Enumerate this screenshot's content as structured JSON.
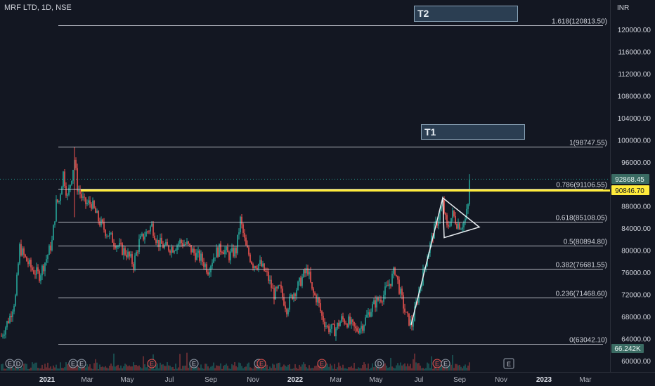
{
  "header": {
    "symbol_title": "MRF LTD, 1D, NSE"
  },
  "axis": {
    "currency": "INR",
    "price_ticks": [
      "120000.00",
      "116000.00",
      "112000.00",
      "108000.00",
      "104000.00",
      "100000.00",
      "96000.00",
      "88000.00",
      "84000.00",
      "80000.00",
      "76000.00",
      "72000.00",
      "68000.00",
      "64000.00",
      "60000.00"
    ],
    "time_ticks": [
      "2021",
      "Mar",
      "May",
      "Jul",
      "Sep",
      "Nov",
      "2022",
      "Mar",
      "May",
      "Jul",
      "Sep",
      "Nov",
      "2023",
      "Mar"
    ],
    "price_range": [
      59000,
      123500
    ]
  },
  "price_labels": {
    "last_price": "92868.45",
    "marker_price": "90846.70",
    "volume": "66.242K"
  },
  "fib_levels": [
    {
      "label": "1.618(120813.50)",
      "price": 120813.5
    },
    {
      "label": "1(98747.55)",
      "price": 98747.55
    },
    {
      "label": "0.786(91106.55)",
      "price": 91106.55
    },
    {
      "label": "0.618(85108.05)",
      "price": 85108.05
    },
    {
      "label": "0.5(80894.80)",
      "price": 80894.8
    },
    {
      "label": "0.382(76681.55)",
      "price": 76681.55
    },
    {
      "label": "0.236(71468.60)",
      "price": 71468.6
    },
    {
      "label": "0(63042.10)",
      "price": 63042.1
    }
  ],
  "targets": [
    {
      "label": "T2"
    },
    {
      "label": "T1"
    }
  ],
  "event_markers": [
    "E",
    "D",
    "E",
    "E",
    "E",
    "E",
    "E",
    "E",
    "E",
    "D",
    "E",
    "E"
  ],
  "colors": {
    "background": "#131722",
    "up": "#26a69a",
    "down": "#ef5350",
    "fib_line": "#d1d4dc",
    "highlight": "#ffeb3b",
    "last_price_bg": "#3a6b63"
  }
}
